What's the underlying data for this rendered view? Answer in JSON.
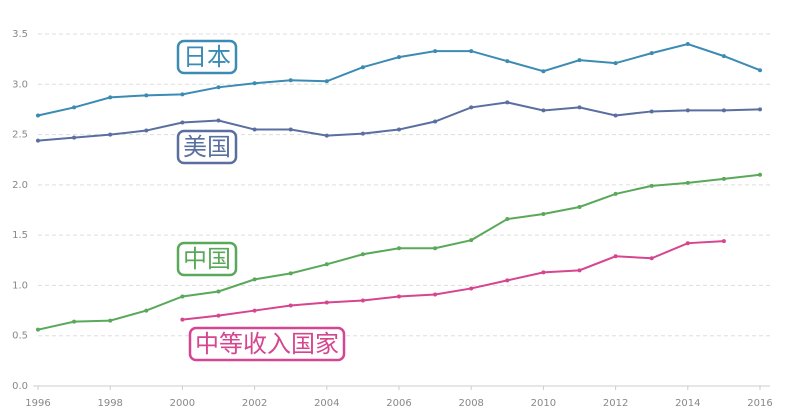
{
  "chart_data": {
    "type": "line",
    "x": [
      1996,
      1997,
      1998,
      1999,
      2000,
      2001,
      2002,
      2003,
      2004,
      2005,
      2006,
      2007,
      2008,
      2009,
      2010,
      2011,
      2012,
      2013,
      2014,
      2015,
      2016
    ],
    "xlim": [
      1996,
      2016
    ],
    "xticks": [
      1996,
      1998,
      2000,
      2002,
      2004,
      2006,
      2008,
      2010,
      2012,
      2014,
      2016
    ],
    "ylim": [
      0,
      3.5
    ],
    "yticks": [
      {
        "value": 0,
        "label": "0.0"
      },
      0.5,
      {
        "value": 1,
        "label": "1.0"
      },
      1.5,
      {
        "value": 2,
        "label": "2.0"
      },
      2.5,
      {
        "value": 3,
        "label": "3.0"
      },
      3.5
    ],
    "grid": true,
    "series": [
      {
        "name": "日本",
        "color": "#3b8bb3",
        "values": [
          2.69,
          2.77,
          2.87,
          2.89,
          2.9,
          2.97,
          3.01,
          3.04,
          3.03,
          3.17,
          3.27,
          3.33,
          3.33,
          3.23,
          3.13,
          3.24,
          3.21,
          3.31,
          3.4,
          3.28,
          3.14
        ]
      },
      {
        "name": "美国",
        "color": "#5a6fa0",
        "values": [
          2.44,
          2.47,
          2.5,
          2.54,
          2.62,
          2.64,
          2.55,
          2.55,
          2.49,
          2.51,
          2.55,
          2.63,
          2.77,
          2.82,
          2.74,
          2.77,
          2.69,
          2.73,
          2.74,
          2.74,
          2.75
        ]
      },
      {
        "name": "中国",
        "color": "#5aa85a",
        "values": [
          0.56,
          0.64,
          0.65,
          0.75,
          0.89,
          0.94,
          1.06,
          1.12,
          1.21,
          1.31,
          1.37,
          1.37,
          1.45,
          1.66,
          1.71,
          1.78,
          1.91,
          1.99,
          2.02,
          2.06,
          2.1
        ]
      },
      {
        "name": "中等收入国家",
        "color": "#d6458f",
        "values": [
          null,
          null,
          null,
          null,
          0.66,
          0.7,
          0.75,
          0.8,
          0.83,
          0.85,
          0.89,
          0.91,
          0.97,
          1.05,
          1.13,
          1.15,
          1.29,
          1.27,
          1.42,
          1.44,
          null
        ]
      }
    ]
  }
}
